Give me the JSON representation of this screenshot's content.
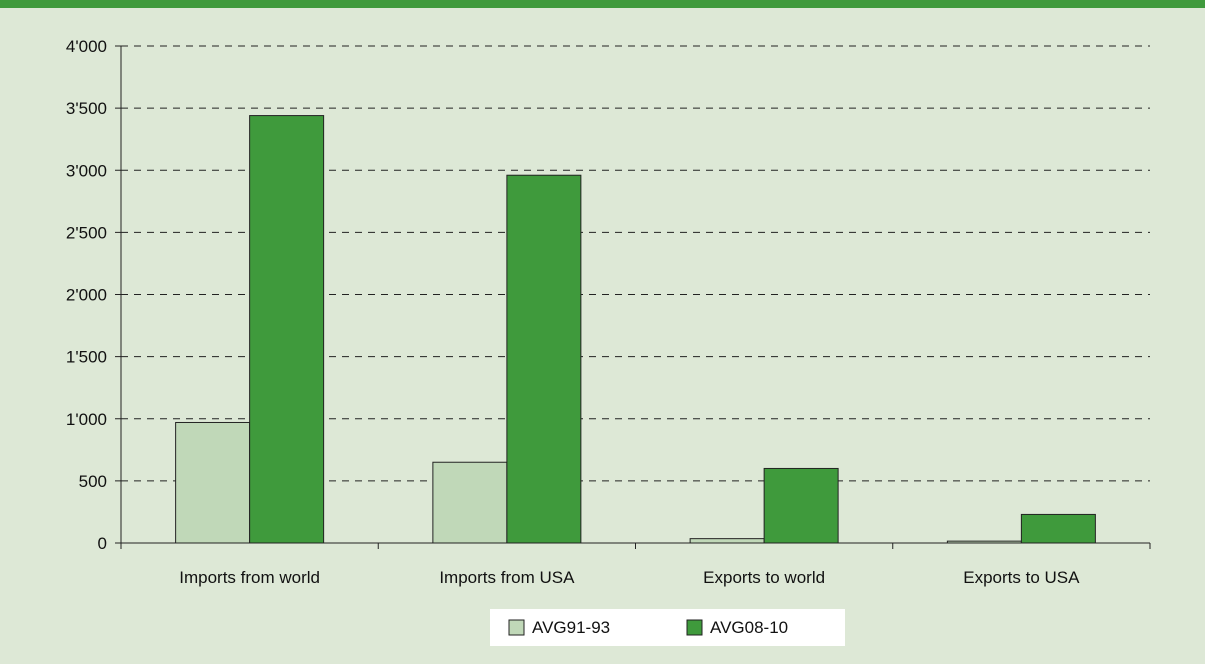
{
  "chart_data": {
    "type": "bar",
    "categories": [
      "Imports from world",
      "Imports from USA",
      "Exports to world",
      "Exports to USA"
    ],
    "series": [
      {
        "name": "AVG91-93",
        "values": [
          970,
          650,
          35,
          15
        ],
        "color": "#c0d8b8"
      },
      {
        "name": "AVG08-10",
        "values": [
          3440,
          2960,
          600,
          230
        ],
        "color": "#3f9a3c"
      }
    ],
    "ylim": [
      0,
      4000
    ],
    "yticks": [
      0,
      500,
      1000,
      1500,
      2000,
      2500,
      3000,
      3500,
      4000
    ],
    "ytick_labels": [
      "0",
      "500",
      "1'000",
      "1'500",
      "2'000",
      "2'500",
      "3'000",
      "3'500",
      "4'000"
    ],
    "grid": "dashed horizontal",
    "legend_position": "bottom-center"
  }
}
